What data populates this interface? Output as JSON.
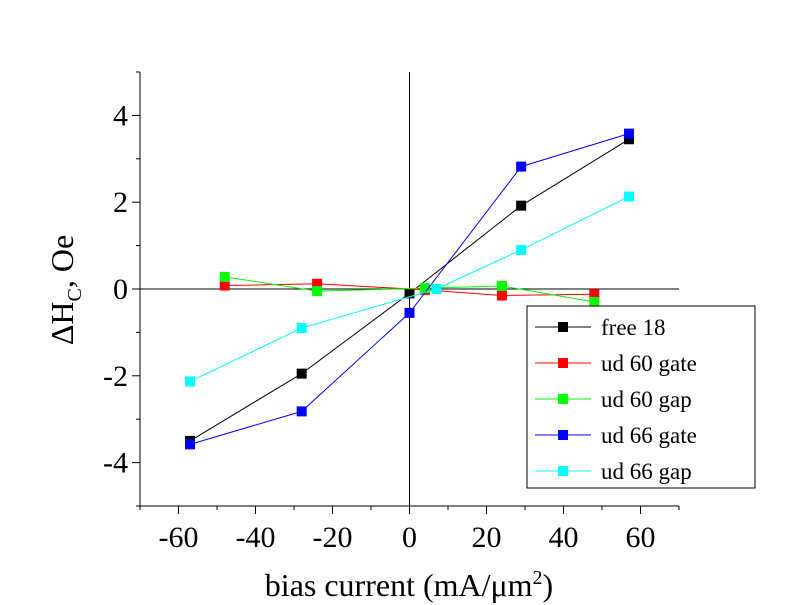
{
  "chart_data": {
    "type": "line",
    "xlabel": {
      "main": "bias current (mA/μm",
      "sup": "2",
      "tail": ")"
    },
    "ylabel": {
      "main": "ΔH",
      "sub": "C",
      "tail": ", Oe"
    },
    "xlim": [
      -70,
      70
    ],
    "ylim": [
      -5,
      5
    ],
    "xticks": [
      -60,
      -40,
      -20,
      0,
      20,
      40,
      60
    ],
    "xtick_labels": [
      "-60",
      "-40",
      "-20",
      "0",
      "20",
      "40",
      "60"
    ],
    "yticks": [
      -4,
      -2,
      0,
      2,
      4
    ],
    "ytick_labels": [
      "-4",
      "-2",
      "0",
      "2",
      "4"
    ],
    "grid": false,
    "legend_position": "bottom-right",
    "series": [
      {
        "name": "free 18",
        "color": "#000000",
        "x": [
          -57,
          -28,
          0,
          29,
          57
        ],
        "y": [
          -3.5,
          -1.95,
          -0.1,
          1.92,
          3.45
        ]
      },
      {
        "name": "ud 60 gate",
        "color": "#ff0000",
        "x": [
          -48,
          -24,
          4,
          24,
          48
        ],
        "y": [
          0.08,
          0.12,
          -0.02,
          -0.15,
          -0.12
        ]
      },
      {
        "name": "ud 60 gap",
        "color": "#00ff00",
        "x": [
          -48,
          -24,
          4,
          24,
          48
        ],
        "y": [
          0.28,
          -0.05,
          0.02,
          0.07,
          -0.3
        ]
      },
      {
        "name": "ud 66 gate",
        "color": "#0000ff",
        "x": [
          -57,
          -28,
          0,
          29,
          57
        ],
        "y": [
          -3.58,
          -2.82,
          -0.55,
          2.82,
          3.58
        ]
      },
      {
        "name": "ud 66 gap",
        "color": "#00ffff",
        "x": [
          -57,
          -28,
          7,
          29,
          57
        ],
        "y": [
          -2.13,
          -0.9,
          0.0,
          0.9,
          2.13
        ]
      }
    ]
  }
}
